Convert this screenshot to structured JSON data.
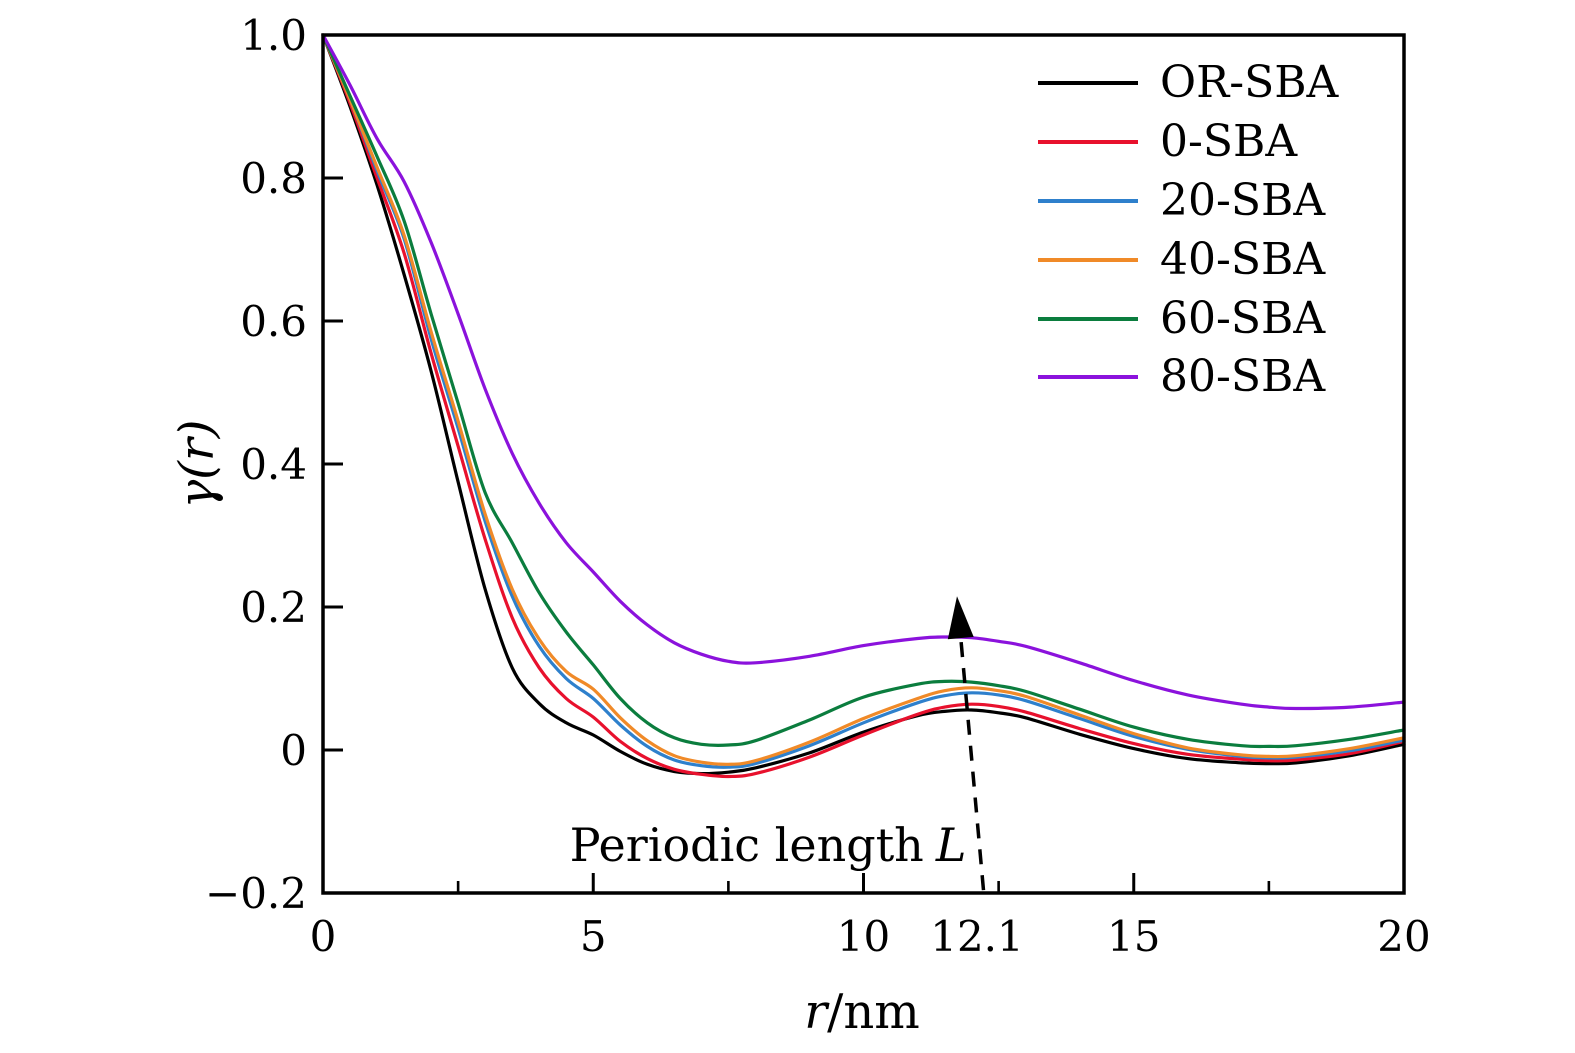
{
  "figure": {
    "background": "#ffffff",
    "ylabel": "γ(r)",
    "xlabel_variable": "r",
    "xlabel_unit": "/nm",
    "annotation_text": "Periodic length",
    "annotation_symbol": "L"
  },
  "chart_data": {
    "type": "line",
    "title": "",
    "xlabel": "r/nm",
    "ylabel": "γ(r)",
    "xlim": [
      0,
      20
    ],
    "ylim": [
      -0.2,
      1.0
    ],
    "grid": false,
    "legend_position": "top-right",
    "axis_color": "#000000",
    "x_ticks": [
      {
        "value": 0,
        "label": "0",
        "tick": true
      },
      {
        "value": 5,
        "label": "5",
        "tick": true
      },
      {
        "value": 10,
        "label": "10",
        "tick": true
      },
      {
        "value": 12.1,
        "label": "12.1",
        "tick": false
      },
      {
        "value": 15,
        "label": "15",
        "tick": true
      },
      {
        "value": 20,
        "label": "20",
        "tick": true
      }
    ],
    "x_minor_ticks": [
      2.5,
      7.5,
      12.5,
      17.5
    ],
    "y_ticks": [
      {
        "value": 1.0,
        "label": "1.0"
      },
      {
        "value": 0.8,
        "label": "0.8"
      },
      {
        "value": 0.6,
        "label": "0.6"
      },
      {
        "value": 0.4,
        "label": "0.4"
      },
      {
        "value": 0.2,
        "label": "0.2"
      },
      {
        "value": 0.0,
        "label": "0"
      },
      {
        "value": -0.2,
        "label": "−0.2"
      }
    ],
    "annotation": {
      "text": "Periodic length L",
      "periodic_length_nm": 12.1,
      "arrow_from_x": 12.22,
      "arrow_from_y": -0.196,
      "arrow_to_x": 11.73,
      "arrow_to_y": 0.215
    },
    "x": [
      0,
      0.5,
      1,
      1.5,
      2,
      2.5,
      3,
      3.5,
      4,
      4.5,
      5,
      5.5,
      6,
      6.5,
      7,
      7.5,
      8,
      9,
      10,
      11,
      11.5,
      12,
      12.5,
      13,
      14,
      15,
      16,
      17,
      17.5,
      18,
      19,
      20
    ],
    "series": [
      {
        "name": "OR-SBA",
        "color": "#000000",
        "values": [
          1.0,
          0.9,
          0.79,
          0.665,
          0.53,
          0.375,
          0.225,
          0.115,
          0.065,
          0.038,
          0.021,
          -0.002,
          -0.02,
          -0.03,
          -0.033,
          -0.031,
          -0.025,
          -0.004,
          0.025,
          0.048,
          0.054,
          0.056,
          0.052,
          0.045,
          0.022,
          0.002,
          -0.012,
          -0.018,
          -0.019,
          -0.018,
          -0.008,
          0.008
        ]
      },
      {
        "name": "0-SBA",
        "color": "#e8112d",
        "values": [
          1.0,
          0.905,
          0.8,
          0.695,
          0.555,
          0.425,
          0.295,
          0.185,
          0.115,
          0.072,
          0.046,
          0.012,
          -0.012,
          -0.027,
          -0.034,
          -0.037,
          -0.033,
          -0.01,
          0.021,
          0.05,
          0.06,
          0.064,
          0.061,
          0.053,
          0.03,
          0.009,
          -0.006,
          -0.013,
          -0.015,
          -0.014,
          -0.005,
          0.012
        ]
      },
      {
        "name": "20-SBA",
        "color": "#2e80cc",
        "values": [
          1.0,
          0.91,
          0.81,
          0.715,
          0.575,
          0.45,
          0.32,
          0.215,
          0.145,
          0.1,
          0.072,
          0.035,
          0.005,
          -0.014,
          -0.022,
          -0.024,
          -0.019,
          0.006,
          0.038,
          0.066,
          0.076,
          0.08,
          0.077,
          0.069,
          0.044,
          0.019,
          0.001,
          -0.009,
          -0.011,
          -0.01,
          -0.001,
          0.014
        ]
      },
      {
        "name": "40-SBA",
        "color": "#f08a28",
        "values": [
          1.0,
          0.91,
          0.815,
          0.72,
          0.585,
          0.46,
          0.33,
          0.225,
          0.155,
          0.11,
          0.085,
          0.045,
          0.013,
          -0.008,
          -0.017,
          -0.02,
          -0.015,
          0.011,
          0.044,
          0.072,
          0.083,
          0.087,
          0.083,
          0.075,
          0.049,
          0.023,
          0.003,
          -0.007,
          -0.009,
          -0.008,
          0.002,
          0.017
        ]
      },
      {
        "name": "60-SBA",
        "color": "#0b7d3e",
        "values": [
          1.0,
          0.915,
          0.83,
          0.74,
          0.61,
          0.485,
          0.36,
          0.29,
          0.22,
          0.165,
          0.119,
          0.072,
          0.038,
          0.017,
          0.008,
          0.007,
          0.013,
          0.042,
          0.074,
          0.092,
          0.096,
          0.095,
          0.09,
          0.082,
          0.057,
          0.032,
          0.015,
          0.006,
          0.005,
          0.006,
          0.015,
          0.028
        ]
      },
      {
        "name": "80-SBA",
        "color": "#8b12dc",
        "values": [
          1.0,
          0.93,
          0.855,
          0.795,
          0.71,
          0.61,
          0.505,
          0.415,
          0.345,
          0.29,
          0.249,
          0.208,
          0.175,
          0.15,
          0.134,
          0.124,
          0.122,
          0.131,
          0.146,
          0.156,
          0.158,
          0.157,
          0.152,
          0.145,
          0.122,
          0.097,
          0.077,
          0.064,
          0.06,
          0.058,
          0.06,
          0.067
        ]
      }
    ]
  }
}
